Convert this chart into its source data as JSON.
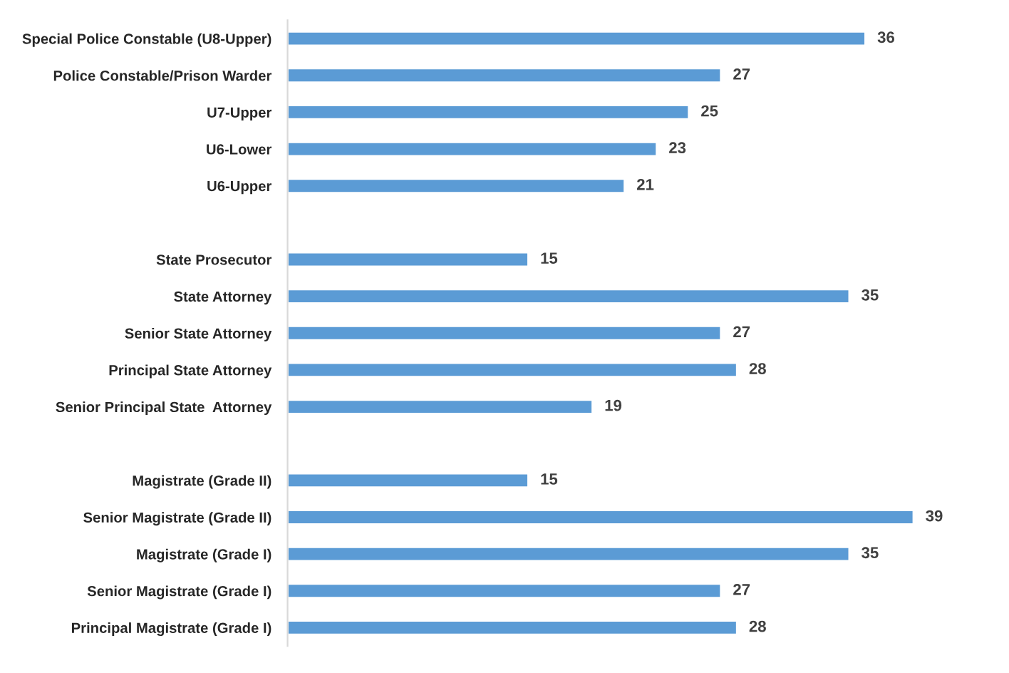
{
  "chart_data": {
    "type": "bar",
    "orientation": "horizontal",
    "tick_labels": "y",
    "data_labels": true,
    "grid": false,
    "legend": false,
    "color": "#5b9bd5",
    "categories": [
      "Special Police Constable (U8-Upper)",
      "Police Constable/Prison Warder",
      "U7-Upper",
      "U6-Lower",
      "U6-Upper",
      null,
      "State Prosecutor",
      "State Attorney",
      "Senior State Attorney",
      "Principal State Attorney",
      "Senior Principal State  Attorney",
      null,
      "Magistrate (Grade II)",
      "Senior Magistrate (Grade II)",
      "Magistrate (Grade I)",
      "Senior Magistrate (Grade I)",
      "Principal Magistrate (Grade I)"
    ],
    "values": [
      36,
      27,
      25,
      23,
      21,
      null,
      15,
      35,
      27,
      28,
      19,
      null,
      15,
      39,
      35,
      27,
      28
    ]
  }
}
